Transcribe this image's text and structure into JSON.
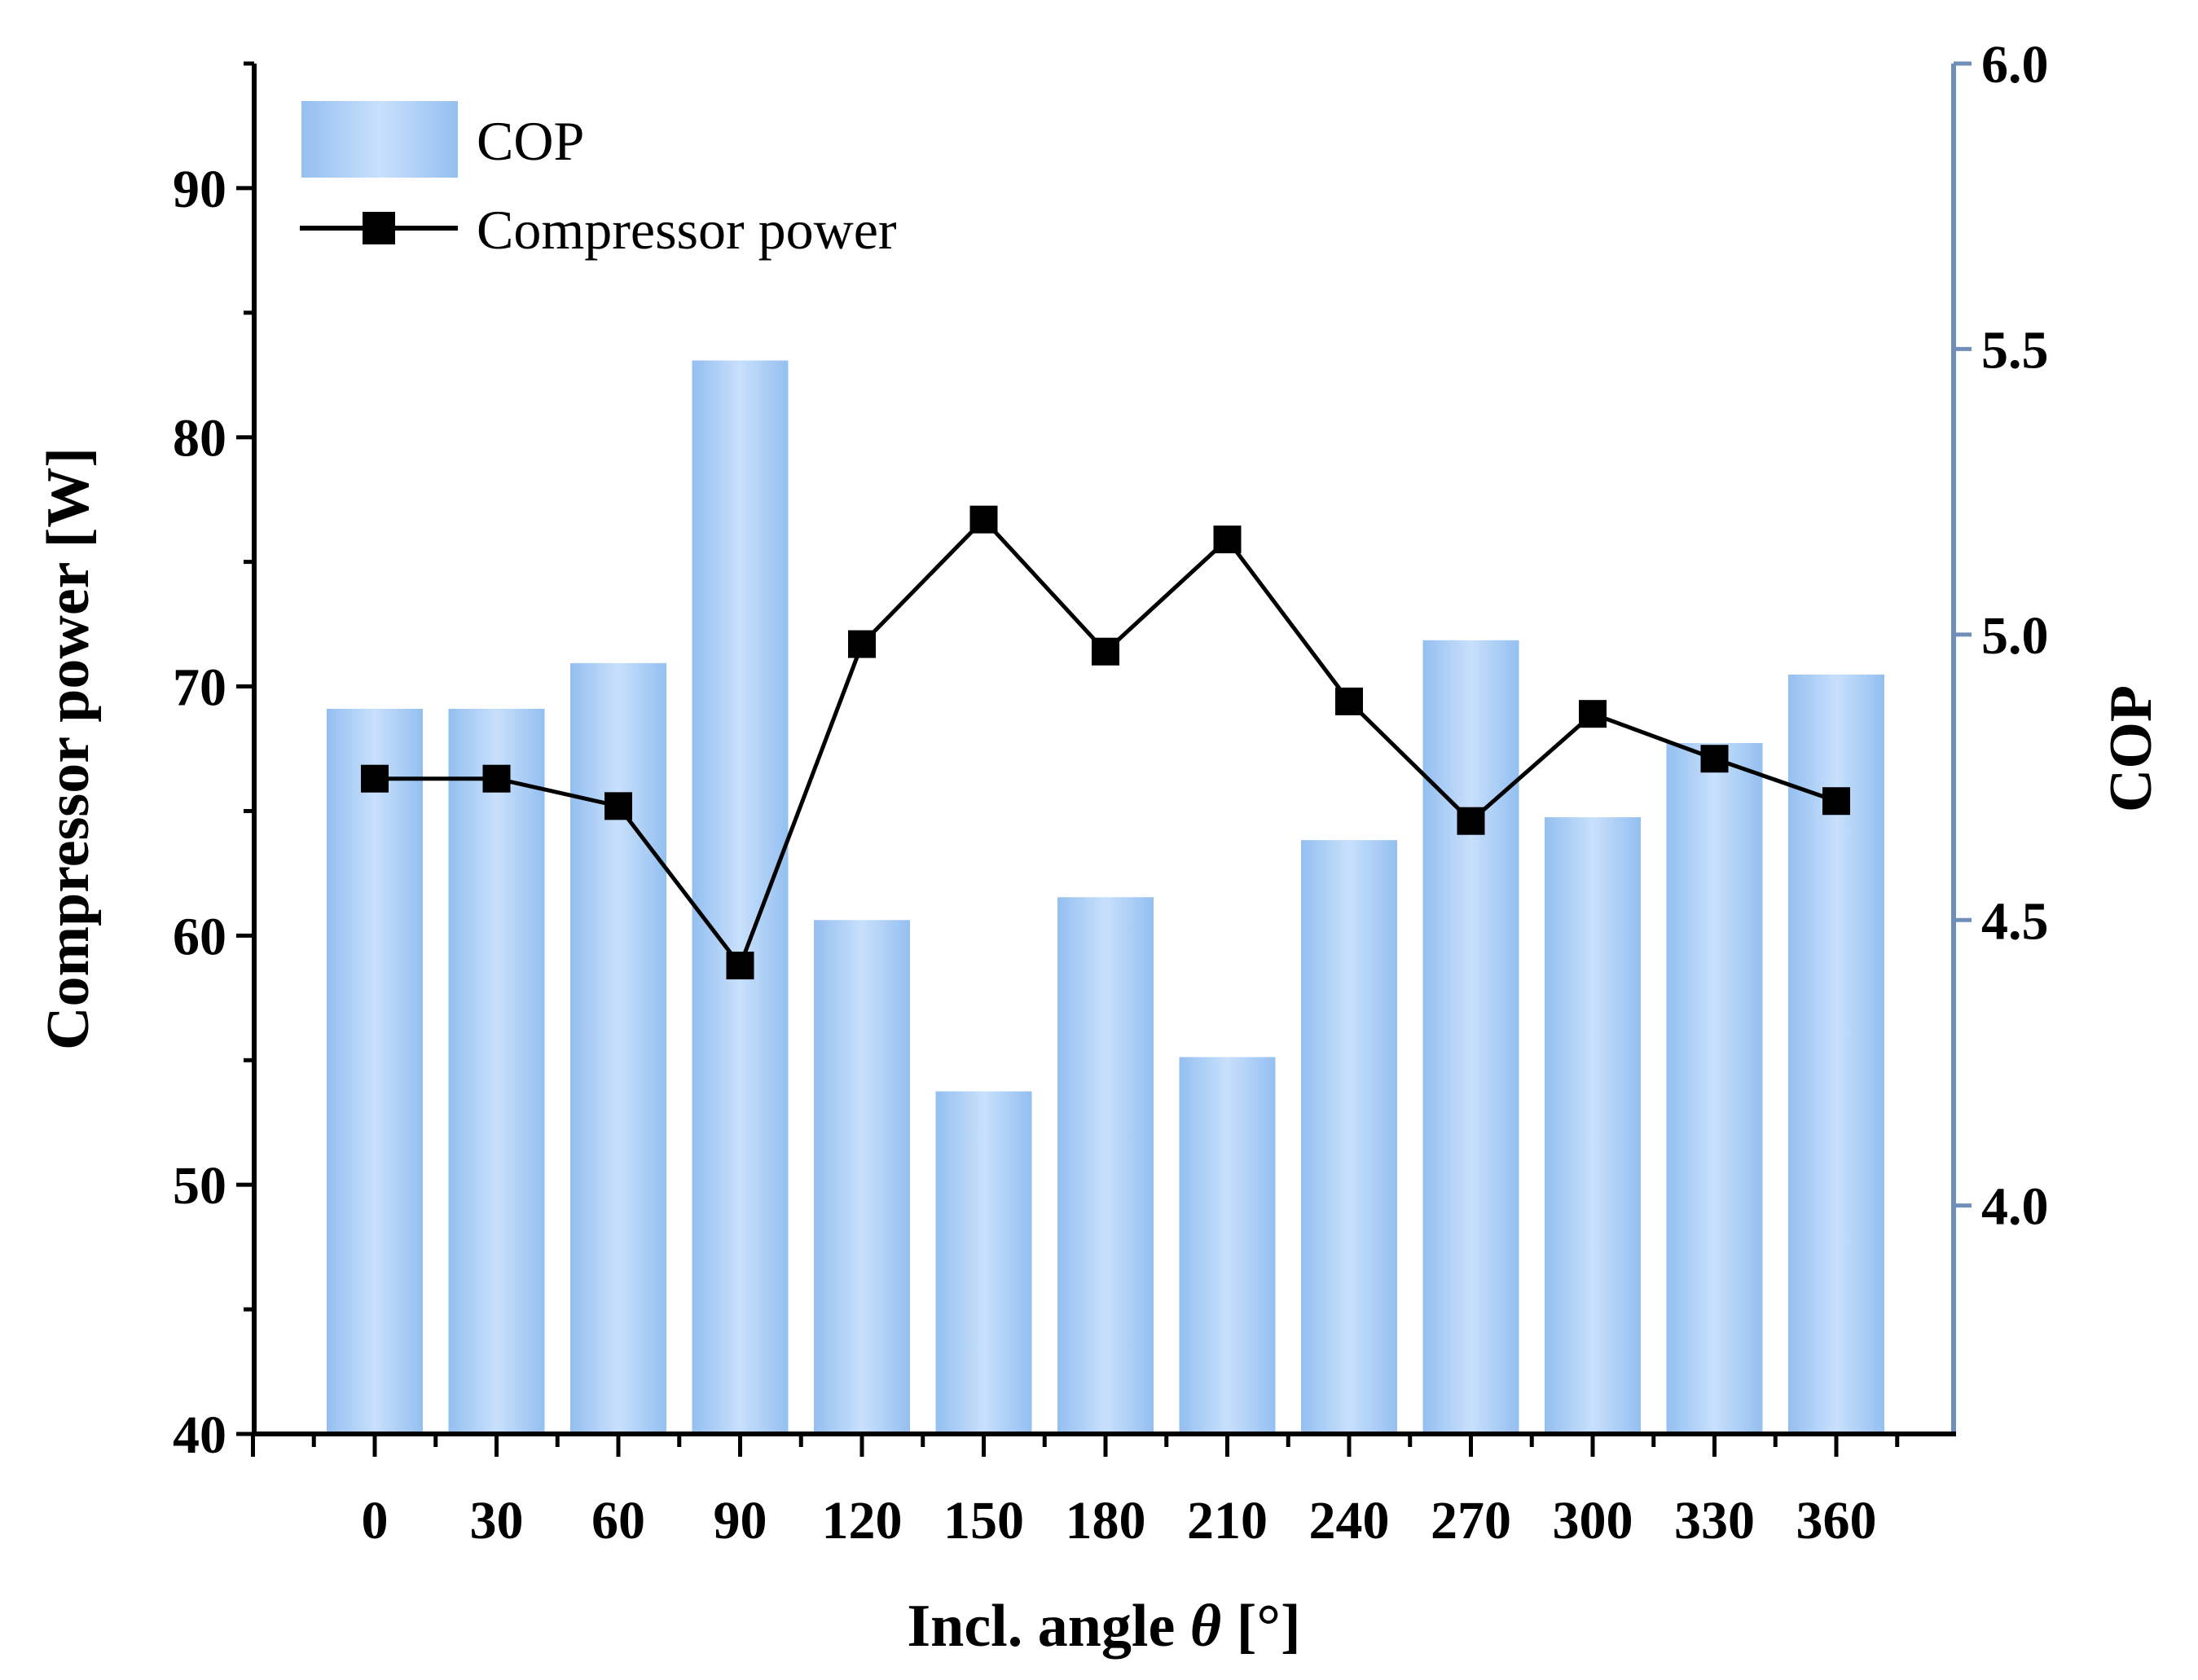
{
  "chart_data": {
    "type": "bar+line",
    "categories": [
      "0",
      "30",
      "60",
      "90",
      "120",
      "150",
      "180",
      "210",
      "240",
      "270",
      "300",
      "330",
      "360"
    ],
    "series": [
      {
        "name": "COP",
        "kind": "bar",
        "axis": "right",
        "values": [
          4.87,
          4.87,
          4.95,
          5.48,
          4.5,
          4.2,
          4.54,
          4.26,
          4.64,
          4.99,
          4.68,
          4.81,
          4.93
        ]
      },
      {
        "name": "Compressor power",
        "kind": "line",
        "axis": "left",
        "values": [
          66.3,
          66.3,
          65.2,
          58.8,
          71.7,
          76.7,
          71.4,
          75.9,
          69.4,
          64.6,
          68.9,
          67.1,
          65.4
        ]
      }
    ],
    "xlabel_prefix": "Incl. angle ",
    "xlabel_symbol": "θ",
    "xlabel_suffix": " [°]",
    "ylabel": "Compressor power [W]",
    "y2label": "COP",
    "ylim": [
      40,
      95
    ],
    "y2lim": [
      3.6,
      6.0
    ],
    "yticks": [
      "40",
      "50",
      "60",
      "70",
      "80",
      "90"
    ],
    "y2ticks": [
      "4.0",
      "4.5",
      "5.0",
      "5.5",
      "6.0"
    ],
    "legend_position": "top-left",
    "colors": {
      "bar_light": "#c8e0fc",
      "bar_dark": "#94bff0",
      "line": "#000000",
      "right_axis": "#6f8eb8"
    }
  }
}
